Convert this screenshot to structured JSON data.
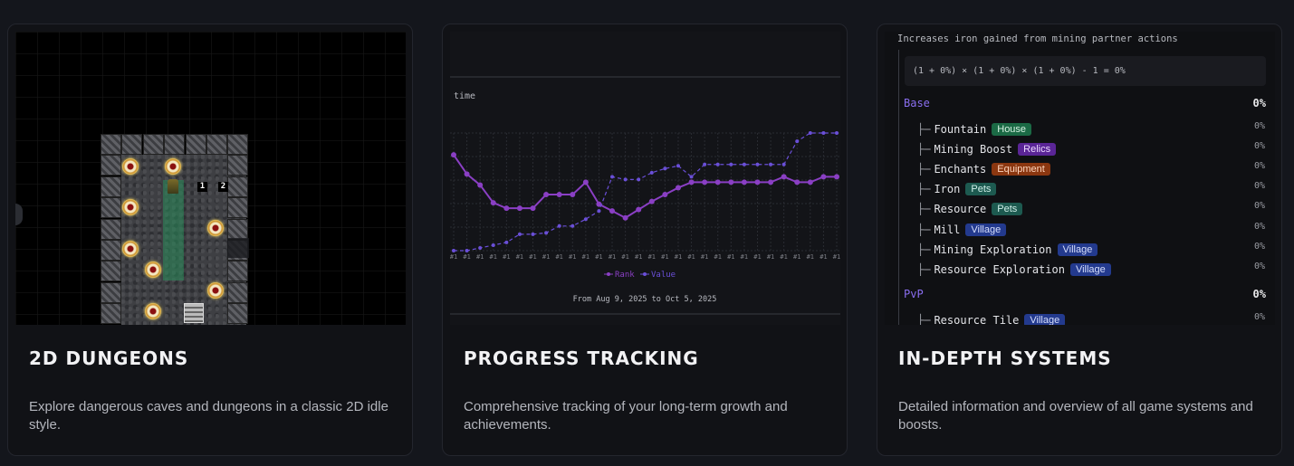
{
  "cards": [
    {
      "title": "2D DUNGEONS",
      "description": "Explore dangerous caves and dungeons in a classic 2D idle style."
    },
    {
      "title": "PROGRESS TRACKING",
      "description": "Comprehensive tracking of your long-term growth and achievements."
    },
    {
      "title": "IN-DEPTH SYSTEMS",
      "description": "Detailed information and overview of all game systems and boosts."
    }
  ],
  "dungeon": {
    "badges": [
      "1",
      "2"
    ]
  },
  "chart_data": {
    "type": "line",
    "ylabel": "time",
    "x_tick_label": "#1",
    "date_range_label": "From Aug 9, 2025 to Oct 5, 2025",
    "series": [
      {
        "name": "Rank",
        "style": "solid",
        "color": "#8a3fc4",
        "values": [
          1,
          2.4,
          3.2,
          4.5,
          4.9,
          4.9,
          4.9,
          3.9,
          3.9,
          3.9,
          3.0,
          4.6,
          5.1,
          5.6,
          5.0,
          4.4,
          3.9,
          3.4,
          3.0,
          3.0,
          3.0,
          3.0,
          3.0,
          3.0,
          3.0,
          2.6,
          3.0,
          3.0,
          2.6,
          2.6
        ]
      },
      {
        "name": "Value",
        "style": "dashed",
        "color": "#6a4fd8",
        "values": [
          8.0,
          8.0,
          7.8,
          7.6,
          7.4,
          6.8,
          6.8,
          6.7,
          6.2,
          6.2,
          5.7,
          5.1,
          2.6,
          2.8,
          2.8,
          2.3,
          2.0,
          1.8,
          2.6,
          1.7,
          1.7,
          1.7,
          1.7,
          1.7,
          1.7,
          1.7,
          0.0,
          -0.6,
          -0.6,
          -0.6
        ]
      }
    ],
    "legend": [
      "Rank",
      "Value"
    ],
    "legend_position": "bottom"
  },
  "systems": {
    "description": "Increases iron gained from mining partner actions",
    "formula": "(1 + 0%) × (1 + 0%) × (1 + 0%) - 1 = 0%",
    "groups": [
      {
        "name": "Base",
        "value": "0%",
        "items": [
          {
            "tree": "├─",
            "name": "Fountain",
            "tag": "House",
            "tag_class": "house",
            "value": "0%"
          },
          {
            "tree": "├─",
            "name": "Mining Boost",
            "tag": "Relics",
            "tag_class": "relics",
            "value": "0%"
          },
          {
            "tree": "├─",
            "name": "Enchants",
            "tag": "Equipment",
            "tag_class": "equipment",
            "value": "0%"
          },
          {
            "tree": "├─",
            "name": "Iron",
            "tag": "Pets",
            "tag_class": "pets",
            "value": "0%"
          },
          {
            "tree": "├─",
            "name": "Resource",
            "tag": "Pets",
            "tag_class": "pets",
            "value": "0%"
          },
          {
            "tree": "├─",
            "name": "Mill",
            "tag": "Village",
            "tag_class": "village",
            "value": "0%"
          },
          {
            "tree": "├─",
            "name": "Mining Exploration",
            "tag": "Village",
            "tag_class": "village",
            "value": "0%"
          },
          {
            "tree": "├─",
            "name": "Resource Exploration",
            "tag": "Village",
            "tag_class": "village",
            "value": "0%"
          }
        ]
      },
      {
        "name": "PvP",
        "value": "0%",
        "items": [
          {
            "tree": "├─",
            "name": "Resource Tile",
            "tag": "Village",
            "tag_class": "village",
            "value": "0%"
          }
        ]
      }
    ]
  }
}
